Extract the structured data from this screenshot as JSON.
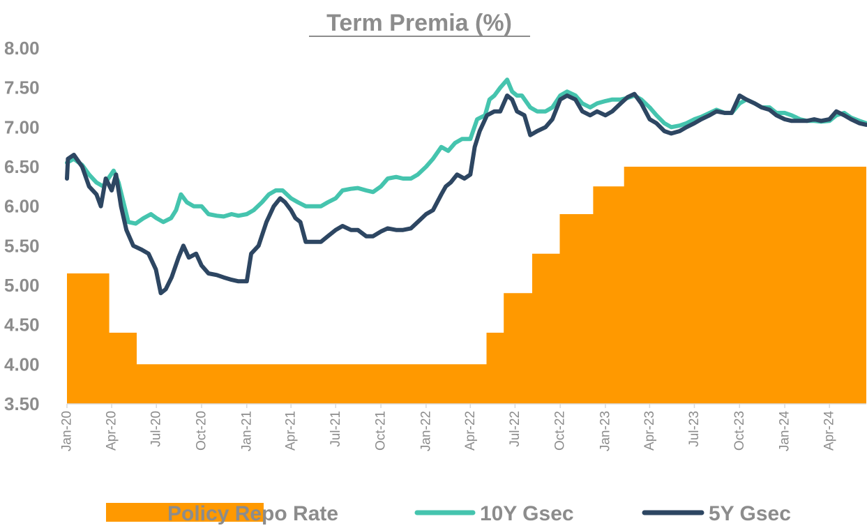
{
  "chart_data": {
    "type": "line",
    "title": "Term Premia (%)",
    "xlabel": "",
    "ylabel": "",
    "ylim": [
      3.5,
      8.0
    ],
    "xlim": [
      "2020-01-01",
      "2024-06-15"
    ],
    "yticks": [
      "3.50",
      "4.00",
      "4.50",
      "5.00",
      "5.50",
      "6.00",
      "6.50",
      "7.00",
      "7.50",
      "8.00"
    ],
    "xticks": [
      {
        "date": "2020-01-01",
        "label": "Jan-20"
      },
      {
        "date": "2020-04-01",
        "label": "Apr-20"
      },
      {
        "date": "2020-07-01",
        "label": "Jul-20"
      },
      {
        "date": "2020-10-01",
        "label": "Oct-20"
      },
      {
        "date": "2021-01-01",
        "label": "Jan-21"
      },
      {
        "date": "2021-04-01",
        "label": "Apr-21"
      },
      {
        "date": "2021-07-01",
        "label": "Jul-21"
      },
      {
        "date": "2021-10-01",
        "label": "Oct-21"
      },
      {
        "date": "2022-01-01",
        "label": "Jan-22"
      },
      {
        "date": "2022-04-01",
        "label": "Apr-22"
      },
      {
        "date": "2022-07-01",
        "label": "Jul-22"
      },
      {
        "date": "2022-10-01",
        "label": "Oct-22"
      },
      {
        "date": "2023-01-01",
        "label": "Jan-23"
      },
      {
        "date": "2023-04-01",
        "label": "Apr-23"
      },
      {
        "date": "2023-07-01",
        "label": "Jul-23"
      },
      {
        "date": "2023-10-01",
        "label": "Oct-23"
      },
      {
        "date": "2024-01-01",
        "label": "Jan-24"
      },
      {
        "date": "2024-04-01",
        "label": "Apr-24"
      }
    ],
    "legend_position": "bottom",
    "grid": false,
    "series": [
      {
        "name": "Policy Repo Rate",
        "kind": "step-area",
        "color": "#FF9900",
        "points": [
          [
            "2020-01-01",
            5.15
          ],
          [
            "2020-03-27",
            4.4
          ],
          [
            "2020-05-22",
            4.0
          ],
          [
            "2022-05-04",
            4.4
          ],
          [
            "2022-06-08",
            4.9
          ],
          [
            "2022-08-05",
            5.4
          ],
          [
            "2022-09-30",
            5.9
          ],
          [
            "2022-12-07",
            6.25
          ],
          [
            "2023-02-08",
            6.5
          ],
          [
            "2024-06-15",
            6.5
          ]
        ]
      },
      {
        "name": "10Y Gsec",
        "kind": "line",
        "color": "#45C4AE",
        "points": [
          [
            "2020-01-01",
            6.55
          ],
          [
            "2020-01-15",
            6.6
          ],
          [
            "2020-02-01",
            6.52
          ],
          [
            "2020-02-15",
            6.4
          ],
          [
            "2020-03-01",
            6.3
          ],
          [
            "2020-03-15",
            6.25
          ],
          [
            "2020-03-25",
            6.35
          ],
          [
            "2020-04-05",
            6.45
          ],
          [
            "2020-04-15",
            6.3
          ],
          [
            "2020-04-25",
            6.05
          ],
          [
            "2020-05-05",
            5.8
          ],
          [
            "2020-05-20",
            5.78
          ],
          [
            "2020-06-05",
            5.85
          ],
          [
            "2020-06-20",
            5.9
          ],
          [
            "2020-07-01",
            5.85
          ],
          [
            "2020-07-15",
            5.8
          ],
          [
            "2020-07-31",
            5.85
          ],
          [
            "2020-08-10",
            5.95
          ],
          [
            "2020-08-20",
            6.15
          ],
          [
            "2020-09-01",
            6.05
          ],
          [
            "2020-09-15",
            6.0
          ],
          [
            "2020-10-01",
            6.0
          ],
          [
            "2020-10-15",
            5.9
          ],
          [
            "2020-11-01",
            5.88
          ],
          [
            "2020-11-15",
            5.87
          ],
          [
            "2020-12-01",
            5.9
          ],
          [
            "2020-12-15",
            5.88
          ],
          [
            "2021-01-01",
            5.9
          ],
          [
            "2021-01-15",
            5.95
          ],
          [
            "2021-02-01",
            6.05
          ],
          [
            "2021-02-15",
            6.15
          ],
          [
            "2021-03-01",
            6.2
          ],
          [
            "2021-03-15",
            6.2
          ],
          [
            "2021-04-01",
            6.1
          ],
          [
            "2021-04-15",
            6.05
          ],
          [
            "2021-05-01",
            6.0
          ],
          [
            "2021-05-15",
            6.0
          ],
          [
            "2021-06-01",
            6.0
          ],
          [
            "2021-06-15",
            6.05
          ],
          [
            "2021-07-01",
            6.1
          ],
          [
            "2021-07-15",
            6.2
          ],
          [
            "2021-08-01",
            6.22
          ],
          [
            "2021-08-15",
            6.23
          ],
          [
            "2021-09-01",
            6.2
          ],
          [
            "2021-09-15",
            6.18
          ],
          [
            "2021-10-01",
            6.25
          ],
          [
            "2021-10-15",
            6.35
          ],
          [
            "2021-11-01",
            6.37
          ],
          [
            "2021-11-15",
            6.35
          ],
          [
            "2021-12-01",
            6.35
          ],
          [
            "2021-12-15",
            6.4
          ],
          [
            "2022-01-01",
            6.5
          ],
          [
            "2022-01-15",
            6.6
          ],
          [
            "2022-02-01",
            6.75
          ],
          [
            "2022-02-15",
            6.7
          ],
          [
            "2022-03-01",
            6.8
          ],
          [
            "2022-03-15",
            6.85
          ],
          [
            "2022-04-01",
            6.85
          ],
          [
            "2022-04-15",
            7.1
          ],
          [
            "2022-05-01",
            7.15
          ],
          [
            "2022-05-10",
            7.35
          ],
          [
            "2022-05-20",
            7.4
          ],
          [
            "2022-06-01",
            7.5
          ],
          [
            "2022-06-15",
            7.6
          ],
          [
            "2022-06-25",
            7.45
          ],
          [
            "2022-07-05",
            7.4
          ],
          [
            "2022-07-15",
            7.4
          ],
          [
            "2022-08-01",
            7.25
          ],
          [
            "2022-08-15",
            7.2
          ],
          [
            "2022-09-01",
            7.2
          ],
          [
            "2022-09-15",
            7.25
          ],
          [
            "2022-10-01",
            7.4
          ],
          [
            "2022-10-15",
            7.45
          ],
          [
            "2022-11-01",
            7.4
          ],
          [
            "2022-11-15",
            7.3
          ],
          [
            "2022-12-01",
            7.25
          ],
          [
            "2022-12-15",
            7.3
          ],
          [
            "2023-01-01",
            7.33
          ],
          [
            "2023-01-15",
            7.35
          ],
          [
            "2023-02-01",
            7.35
          ],
          [
            "2023-02-15",
            7.37
          ],
          [
            "2023-03-01",
            7.4
          ],
          [
            "2023-03-15",
            7.35
          ],
          [
            "2023-04-01",
            7.25
          ],
          [
            "2023-04-15",
            7.15
          ],
          [
            "2023-05-01",
            7.05
          ],
          [
            "2023-05-15",
            7.0
          ],
          [
            "2023-06-01",
            7.02
          ],
          [
            "2023-06-15",
            7.05
          ],
          [
            "2023-07-01",
            7.1
          ],
          [
            "2023-07-15",
            7.13
          ],
          [
            "2023-08-01",
            7.18
          ],
          [
            "2023-08-15",
            7.22
          ],
          [
            "2023-09-01",
            7.18
          ],
          [
            "2023-09-15",
            7.18
          ],
          [
            "2023-10-01",
            7.3
          ],
          [
            "2023-10-15",
            7.35
          ],
          [
            "2023-11-01",
            7.3
          ],
          [
            "2023-11-15",
            7.25
          ],
          [
            "2023-12-01",
            7.25
          ],
          [
            "2023-12-15",
            7.18
          ],
          [
            "2024-01-01",
            7.18
          ],
          [
            "2024-01-15",
            7.15
          ],
          [
            "2024-02-01",
            7.1
          ],
          [
            "2024-02-15",
            7.08
          ],
          [
            "2024-03-01",
            7.08
          ],
          [
            "2024-03-15",
            7.07
          ],
          [
            "2024-04-01",
            7.08
          ],
          [
            "2024-04-15",
            7.15
          ],
          [
            "2024-05-01",
            7.18
          ],
          [
            "2024-05-15",
            7.12
          ],
          [
            "2024-06-01",
            7.08
          ],
          [
            "2024-06-15",
            7.05
          ]
        ]
      },
      {
        "name": "5Y Gsec",
        "kind": "line",
        "color": "#2D4662",
        "points": [
          [
            "2020-01-01",
            6.35
          ],
          [
            "2020-01-03",
            6.6
          ],
          [
            "2020-01-15",
            6.65
          ],
          [
            "2020-02-01",
            6.5
          ],
          [
            "2020-02-15",
            6.25
          ],
          [
            "2020-03-01",
            6.15
          ],
          [
            "2020-03-10",
            6.0
          ],
          [
            "2020-03-20",
            6.35
          ],
          [
            "2020-04-01",
            6.2
          ],
          [
            "2020-04-10",
            6.4
          ],
          [
            "2020-04-20",
            6.0
          ],
          [
            "2020-05-01",
            5.7
          ],
          [
            "2020-05-15",
            5.5
          ],
          [
            "2020-06-01",
            5.45
          ],
          [
            "2020-06-15",
            5.4
          ],
          [
            "2020-06-30",
            5.2
          ],
          [
            "2020-07-10",
            4.9
          ],
          [
            "2020-07-20",
            4.95
          ],
          [
            "2020-08-01",
            5.1
          ],
          [
            "2020-08-15",
            5.35
          ],
          [
            "2020-08-25",
            5.5
          ],
          [
            "2020-09-05",
            5.35
          ],
          [
            "2020-09-20",
            5.4
          ],
          [
            "2020-10-01",
            5.25
          ],
          [
            "2020-10-15",
            5.15
          ],
          [
            "2020-11-01",
            5.13
          ],
          [
            "2020-11-15",
            5.1
          ],
          [
            "2020-12-01",
            5.07
          ],
          [
            "2020-12-15",
            5.05
          ],
          [
            "2021-01-01",
            5.05
          ],
          [
            "2021-01-10",
            5.4
          ],
          [
            "2021-01-25",
            5.5
          ],
          [
            "2021-02-10",
            5.8
          ],
          [
            "2021-02-25",
            6.0
          ],
          [
            "2021-03-10",
            6.1
          ],
          [
            "2021-03-20",
            6.05
          ],
          [
            "2021-04-01",
            5.95
          ],
          [
            "2021-04-10",
            5.85
          ],
          [
            "2021-04-20",
            5.8
          ],
          [
            "2021-05-01",
            5.55
          ],
          [
            "2021-05-15",
            5.55
          ],
          [
            "2021-06-01",
            5.55
          ],
          [
            "2021-06-15",
            5.62
          ],
          [
            "2021-07-01",
            5.7
          ],
          [
            "2021-07-15",
            5.75
          ],
          [
            "2021-08-01",
            5.7
          ],
          [
            "2021-08-15",
            5.7
          ],
          [
            "2021-09-01",
            5.62
          ],
          [
            "2021-09-15",
            5.62
          ],
          [
            "2021-10-01",
            5.68
          ],
          [
            "2021-10-15",
            5.72
          ],
          [
            "2021-11-01",
            5.7
          ],
          [
            "2021-11-15",
            5.7
          ],
          [
            "2021-12-01",
            5.72
          ],
          [
            "2021-12-15",
            5.8
          ],
          [
            "2022-01-01",
            5.9
          ],
          [
            "2022-01-15",
            5.95
          ],
          [
            "2022-02-01",
            6.15
          ],
          [
            "2022-02-10",
            6.25
          ],
          [
            "2022-02-20",
            6.3
          ],
          [
            "2022-03-05",
            6.4
          ],
          [
            "2022-03-20",
            6.35
          ],
          [
            "2022-04-01",
            6.4
          ],
          [
            "2022-04-10",
            6.75
          ],
          [
            "2022-04-20",
            6.95
          ],
          [
            "2022-05-05",
            7.15
          ],
          [
            "2022-05-20",
            7.2
          ],
          [
            "2022-06-01",
            7.2
          ],
          [
            "2022-06-15",
            7.4
          ],
          [
            "2022-06-25",
            7.35
          ],
          [
            "2022-07-05",
            7.2
          ],
          [
            "2022-07-20",
            7.15
          ],
          [
            "2022-08-01",
            6.9
          ],
          [
            "2022-08-15",
            6.95
          ],
          [
            "2022-09-01",
            7.0
          ],
          [
            "2022-09-15",
            7.1
          ],
          [
            "2022-10-01",
            7.35
          ],
          [
            "2022-10-15",
            7.4
          ],
          [
            "2022-11-01",
            7.35
          ],
          [
            "2022-11-15",
            7.2
          ],
          [
            "2022-12-01",
            7.15
          ],
          [
            "2022-12-15",
            7.2
          ],
          [
            "2023-01-01",
            7.15
          ],
          [
            "2023-01-15",
            7.2
          ],
          [
            "2023-02-01",
            7.3
          ],
          [
            "2023-02-15",
            7.38
          ],
          [
            "2023-03-01",
            7.42
          ],
          [
            "2023-03-15",
            7.3
          ],
          [
            "2023-04-01",
            7.1
          ],
          [
            "2023-04-15",
            7.05
          ],
          [
            "2023-05-01",
            6.95
          ],
          [
            "2023-05-15",
            6.92
          ],
          [
            "2023-06-01",
            6.95
          ],
          [
            "2023-06-15",
            7.0
          ],
          [
            "2023-07-01",
            7.05
          ],
          [
            "2023-07-15",
            7.1
          ],
          [
            "2023-08-01",
            7.15
          ],
          [
            "2023-08-15",
            7.2
          ],
          [
            "2023-09-01",
            7.18
          ],
          [
            "2023-09-15",
            7.18
          ],
          [
            "2023-10-01",
            7.4
          ],
          [
            "2023-10-15",
            7.35
          ],
          [
            "2023-11-01",
            7.3
          ],
          [
            "2023-11-15",
            7.25
          ],
          [
            "2023-12-01",
            7.22
          ],
          [
            "2023-12-15",
            7.15
          ],
          [
            "2024-01-01",
            7.1
          ],
          [
            "2024-01-15",
            7.08
          ],
          [
            "2024-02-01",
            7.08
          ],
          [
            "2024-02-15",
            7.08
          ],
          [
            "2024-03-01",
            7.1
          ],
          [
            "2024-03-15",
            7.08
          ],
          [
            "2024-04-01",
            7.1
          ],
          [
            "2024-04-15",
            7.2
          ],
          [
            "2024-05-01",
            7.15
          ],
          [
            "2024-05-15",
            7.1
          ],
          [
            "2024-06-01",
            7.05
          ],
          [
            "2024-06-15",
            7.03
          ]
        ]
      }
    ]
  }
}
